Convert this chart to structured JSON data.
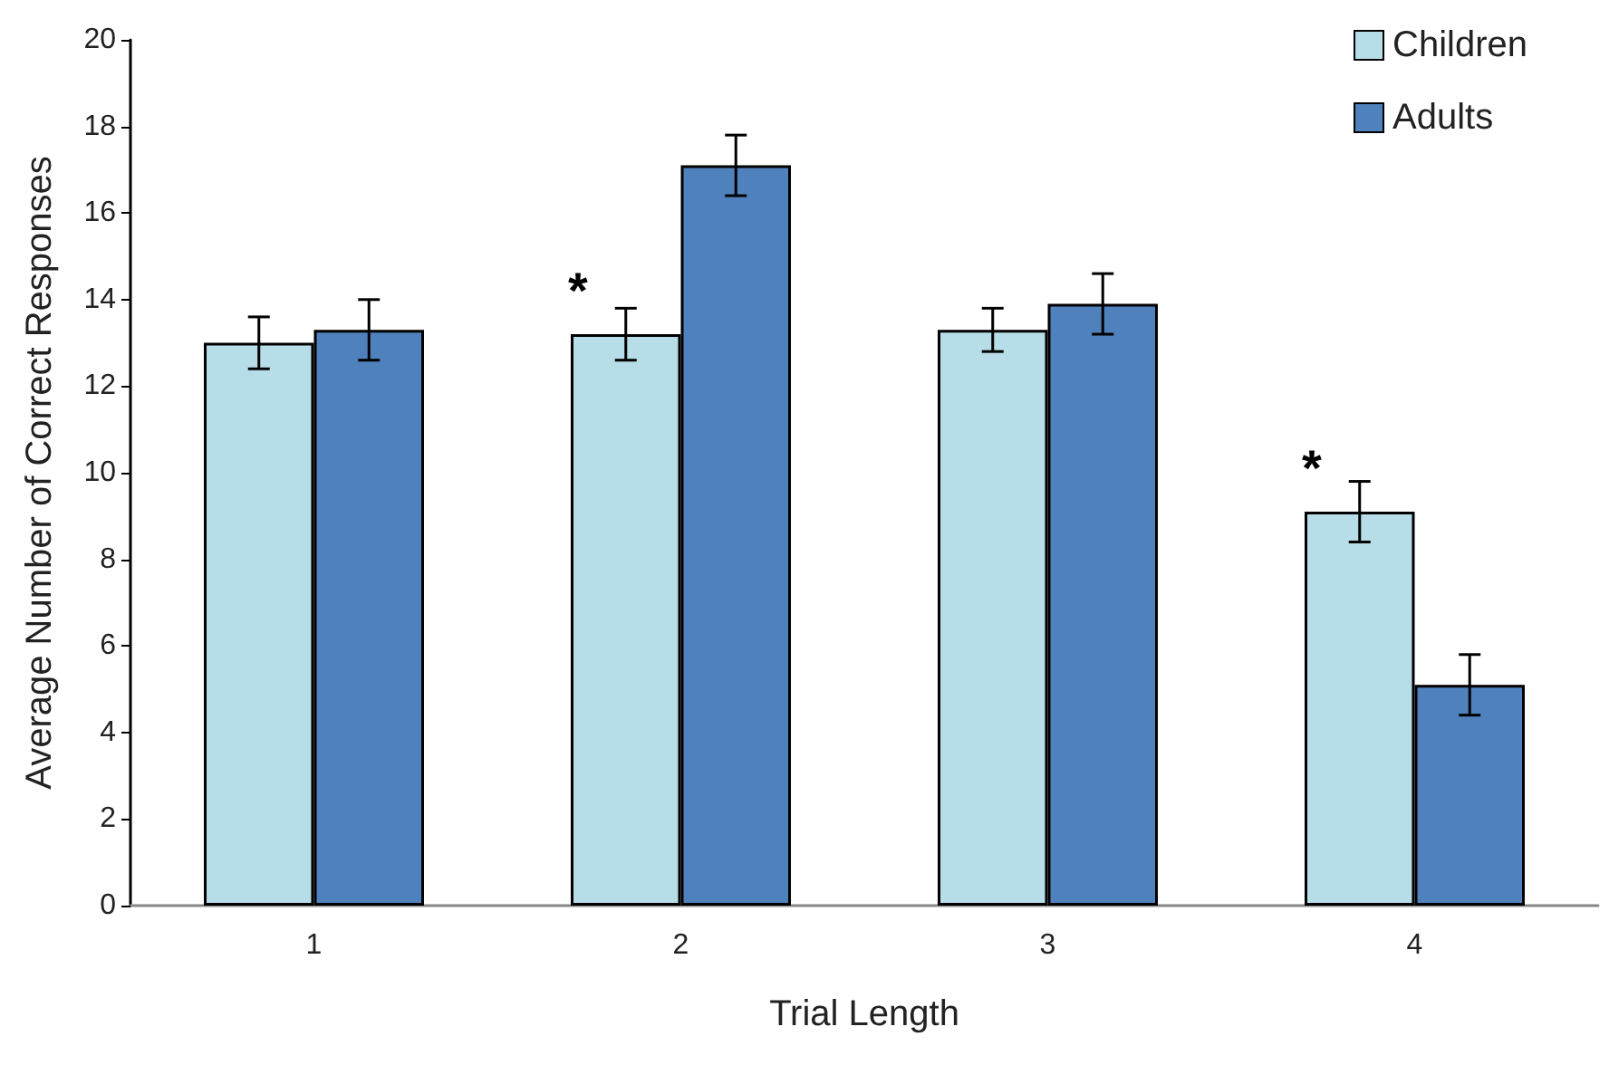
{
  "chart_data": {
    "type": "bar",
    "xlabel": "Trial Length",
    "ylabel": "Average Number of Correct Responses",
    "categories": [
      "1",
      "2",
      "3",
      "4"
    ],
    "series": [
      {
        "name": "Children",
        "color": "#b7dde8",
        "values": [
          13.0,
          13.2,
          13.3,
          9.1
        ],
        "errors": [
          0.6,
          0.6,
          0.5,
          0.7
        ]
      },
      {
        "name": "Adults",
        "color": "#4f81bd",
        "values": [
          13.3,
          17.1,
          13.9,
          5.1
        ],
        "errors": [
          0.7,
          0.7,
          0.7,
          0.7
        ]
      }
    ],
    "annotations": [
      {
        "text": "*",
        "x": "2",
        "y": 13.2
      },
      {
        "text": "*",
        "x": "4",
        "y": 9.1
      }
    ],
    "ylim": [
      0,
      20
    ],
    "yticks": [
      0,
      2,
      4,
      6,
      8,
      10,
      12,
      14,
      16,
      18,
      20
    ],
    "grid": false,
    "legend": "top right"
  }
}
